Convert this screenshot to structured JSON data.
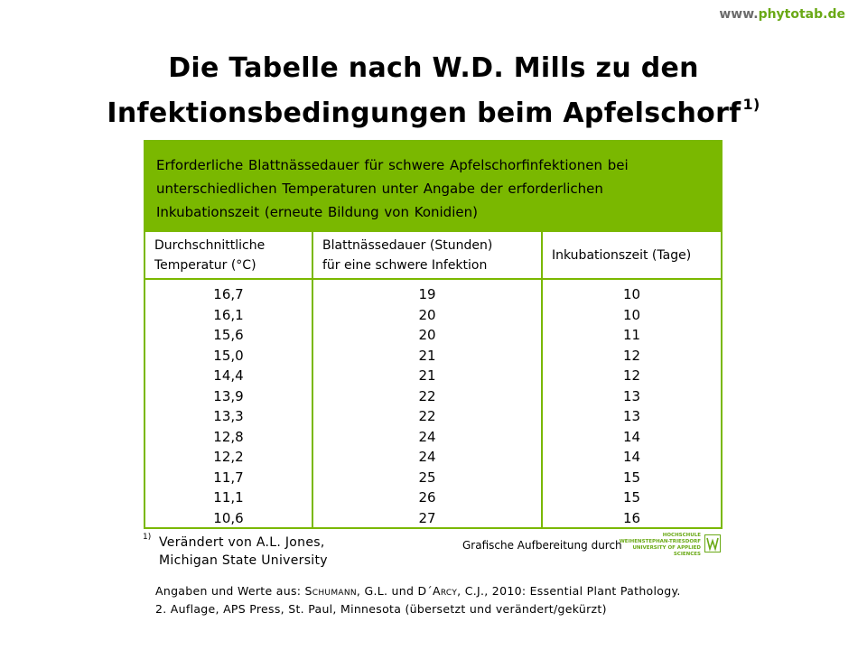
{
  "site": {
    "www": "www.",
    "domain": "phytotab",
    "tld": ".de"
  },
  "title": {
    "line1": "Die Tabelle nach W.D. Mills zu den",
    "line2": "Infektionsbedingungen beim Apfelschorf",
    "footnote_ref": "1)"
  },
  "table": {
    "caption": "Erforderliche Blattnässedauer für schwere Apfelschorfinfektionen bei unterschiedlichen Temperaturen unter Angabe der erforderlichen Inkubationszeit (erneute Bildung von Konidien)",
    "headers": [
      {
        "line1": "Durchschnittliche",
        "line2": "Temperatur (°C)"
      },
      {
        "line1": "Blattnässedauer (Stunden)",
        "line2": "für eine schwere Infektion"
      },
      {
        "line1": "Inkubationszeit (Tage)",
        "line2": ""
      }
    ],
    "temperature": [
      "16,7",
      "16,1",
      "15,6",
      "15,0",
      "14,4",
      "13,9",
      "13,3",
      "12,8",
      "12,2",
      "11,7",
      "11,1",
      "10,6"
    ],
    "wetness_hours": [
      "19",
      "20",
      "20",
      "21",
      "21",
      "22",
      "22",
      "24",
      "24",
      "25",
      "26",
      "27"
    ],
    "incubation_days": [
      "10",
      "10",
      "11",
      "12",
      "12",
      "13",
      "13",
      "14",
      "14",
      "15",
      "15",
      "16"
    ]
  },
  "footnote": {
    "marker": "1)",
    "line1": "Verändert von A.L. Jones,",
    "line2": "Michigan State University"
  },
  "credit": "Grafische Aufbereitung durch",
  "logo": {
    "line1": "HOCHSCHULE",
    "line2": "WEIHENSTEPHAN-TRIESDORF",
    "line3": "UNIVERSITY OF APPLIED SCIENCES",
    "icon": "hswt-logo-icon",
    "color": "#6aa916"
  },
  "source": {
    "prefix": "Angaben und Werte aus: ",
    "author1": "Schumann",
    "mid": ", G.L. und D´",
    "author2": "Arcy",
    "rest1": ", C.J., 2010: Essential Plant Pathology.",
    "line2": "2. Auflage, APS Press, St. Paul, Minnesota (übersetzt und verändert/gekürzt)"
  },
  "colors": {
    "accent_green": "#7ab800",
    "url_green": "#6aa916",
    "url_gray": "#6c6c6c"
  }
}
